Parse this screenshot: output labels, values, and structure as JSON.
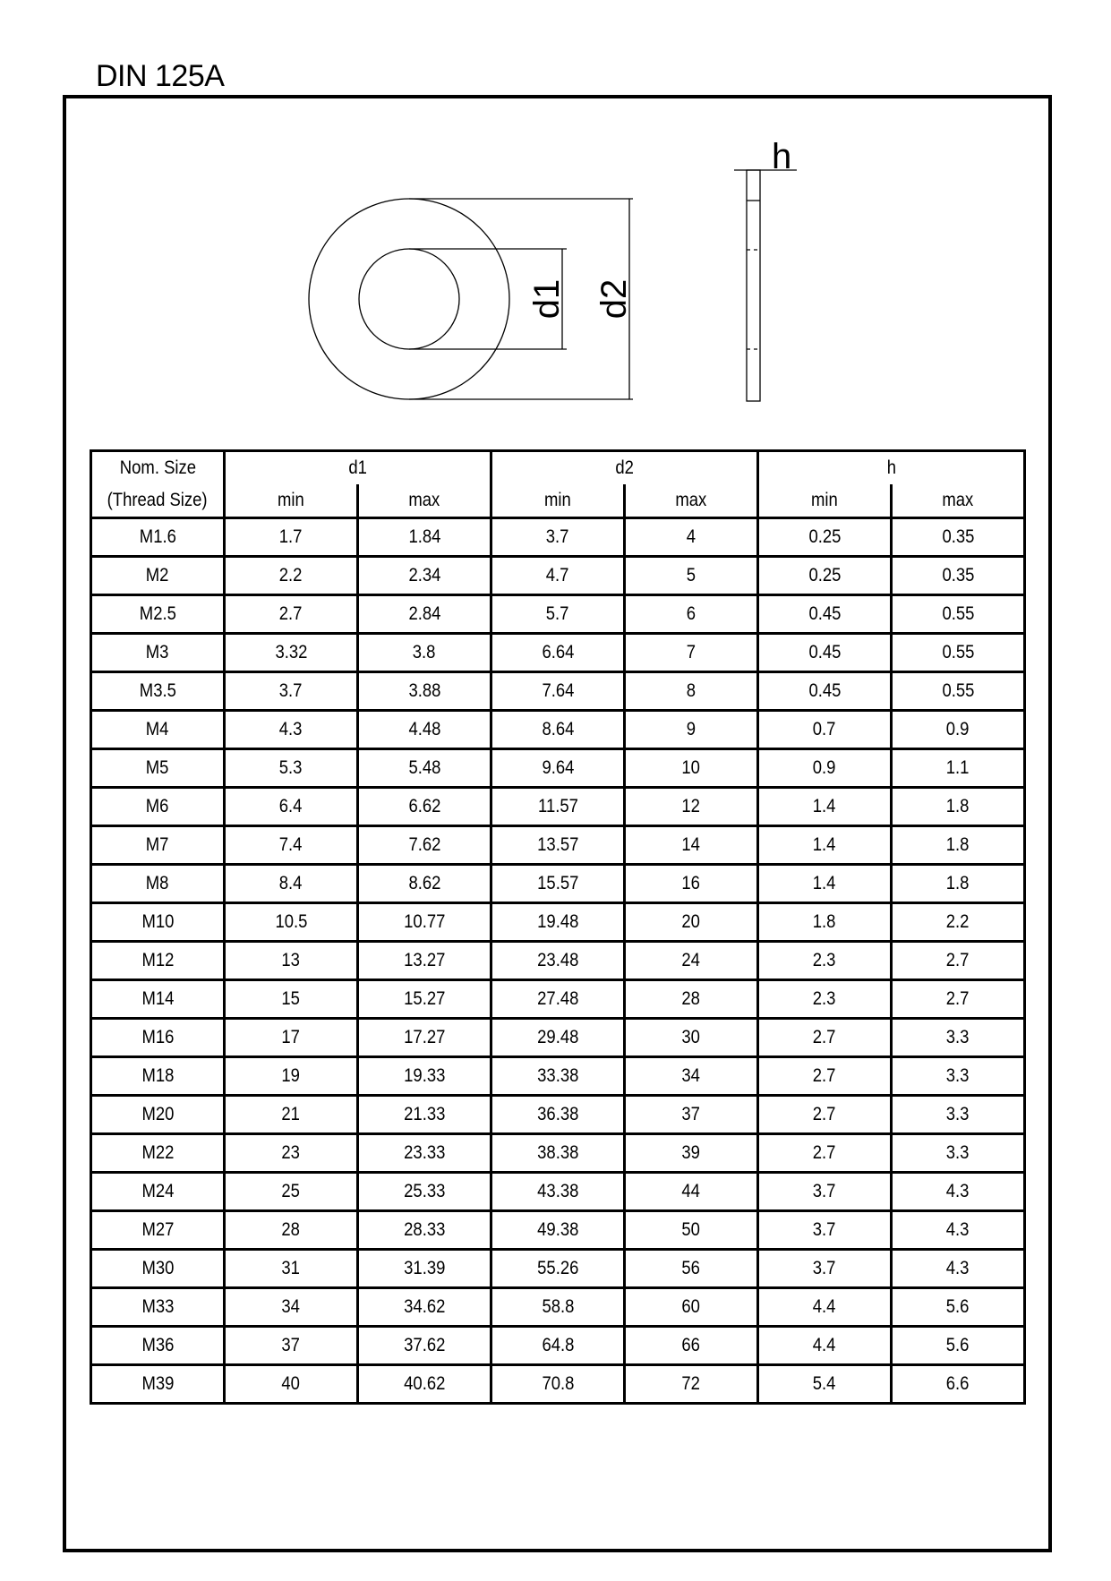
{
  "title": "DIN 125A",
  "drawing": {
    "labels": {
      "d1": "d1",
      "d2": "d2",
      "h": "h"
    }
  },
  "table": {
    "header": {
      "nom_size": "Nom. Size",
      "thread_size": "(Thread Size)",
      "groups": [
        "d1",
        "d2",
        "h"
      ],
      "sub": [
        "min",
        "max",
        "min",
        "max",
        "min",
        "max"
      ]
    },
    "rows": [
      [
        "M1.6",
        "1.7",
        "1.84",
        "3.7",
        "4",
        "0.25",
        "0.35"
      ],
      [
        "M2",
        "2.2",
        "2.34",
        "4.7",
        "5",
        "0.25",
        "0.35"
      ],
      [
        "M2.5",
        "2.7",
        "2.84",
        "5.7",
        "6",
        "0.45",
        "0.55"
      ],
      [
        "M3",
        "3.32",
        "3.8",
        "6.64",
        "7",
        "0.45",
        "0.55"
      ],
      [
        "M3.5",
        "3.7",
        "3.88",
        "7.64",
        "8",
        "0.45",
        "0.55"
      ],
      [
        "M4",
        "4.3",
        "4.48",
        "8.64",
        "9",
        "0.7",
        "0.9"
      ],
      [
        "M5",
        "5.3",
        "5.48",
        "9.64",
        "10",
        "0.9",
        "1.1"
      ],
      [
        "M6",
        "6.4",
        "6.62",
        "11.57",
        "12",
        "1.4",
        "1.8"
      ],
      [
        "M7",
        "7.4",
        "7.62",
        "13.57",
        "14",
        "1.4",
        "1.8"
      ],
      [
        "M8",
        "8.4",
        "8.62",
        "15.57",
        "16",
        "1.4",
        "1.8"
      ],
      [
        "M10",
        "10.5",
        "10.77",
        "19.48",
        "20",
        "1.8",
        "2.2"
      ],
      [
        "M12",
        "13",
        "13.27",
        "23.48",
        "24",
        "2.3",
        "2.7"
      ],
      [
        "M14",
        "15",
        "15.27",
        "27.48",
        "28",
        "2.3",
        "2.7"
      ],
      [
        "M16",
        "17",
        "17.27",
        "29.48",
        "30",
        "2.7",
        "3.3"
      ],
      [
        "M18",
        "19",
        "19.33",
        "33.38",
        "34",
        "2.7",
        "3.3"
      ],
      [
        "M20",
        "21",
        "21.33",
        "36.38",
        "37",
        "2.7",
        "3.3"
      ],
      [
        "M22",
        "23",
        "23.33",
        "38.38",
        "39",
        "2.7",
        "3.3"
      ],
      [
        "M24",
        "25",
        "25.33",
        "43.38",
        "44",
        "3.7",
        "4.3"
      ],
      [
        "M27",
        "28",
        "28.33",
        "49.38",
        "50",
        "3.7",
        "4.3"
      ],
      [
        "M30",
        "31",
        "31.39",
        "55.26",
        "56",
        "3.7",
        "4.3"
      ],
      [
        "M33",
        "34",
        "34.62",
        "58.8",
        "60",
        "4.4",
        "5.6"
      ],
      [
        "M36",
        "37",
        "37.62",
        "64.8",
        "66",
        "4.4",
        "5.6"
      ],
      [
        "M39",
        "40",
        "40.62",
        "70.8",
        "72",
        "5.4",
        "6.6"
      ]
    ]
  }
}
